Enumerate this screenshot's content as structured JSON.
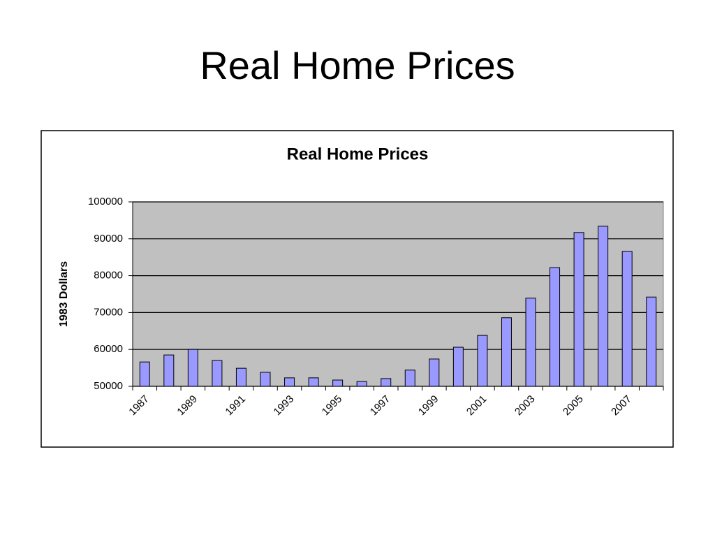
{
  "slide_title": "Real Home Prices",
  "chart_data": {
    "type": "bar",
    "title": "Real Home Prices",
    "y_label": "1983 Dollars",
    "categories": [
      "1987",
      null,
      "1989",
      null,
      "1991",
      null,
      "1993",
      null,
      "1995",
      null,
      "1997",
      null,
      "1999",
      null,
      "2001",
      null,
      "2003",
      null,
      "2005",
      null,
      "2007",
      null
    ],
    "values": [
      56600,
      58500,
      60000,
      57000,
      54900,
      53800,
      52300,
      52300,
      51700,
      51300,
      52100,
      54400,
      57400,
      60600,
      63800,
      68600,
      73900,
      82200,
      91700,
      93400,
      86600,
      74200
    ],
    "color": "#9999ff",
    "ylim": [
      50000,
      100000
    ],
    "yticks": [
      50000,
      60000,
      70000,
      80000,
      90000,
      100000
    ],
    "grid": true
  }
}
